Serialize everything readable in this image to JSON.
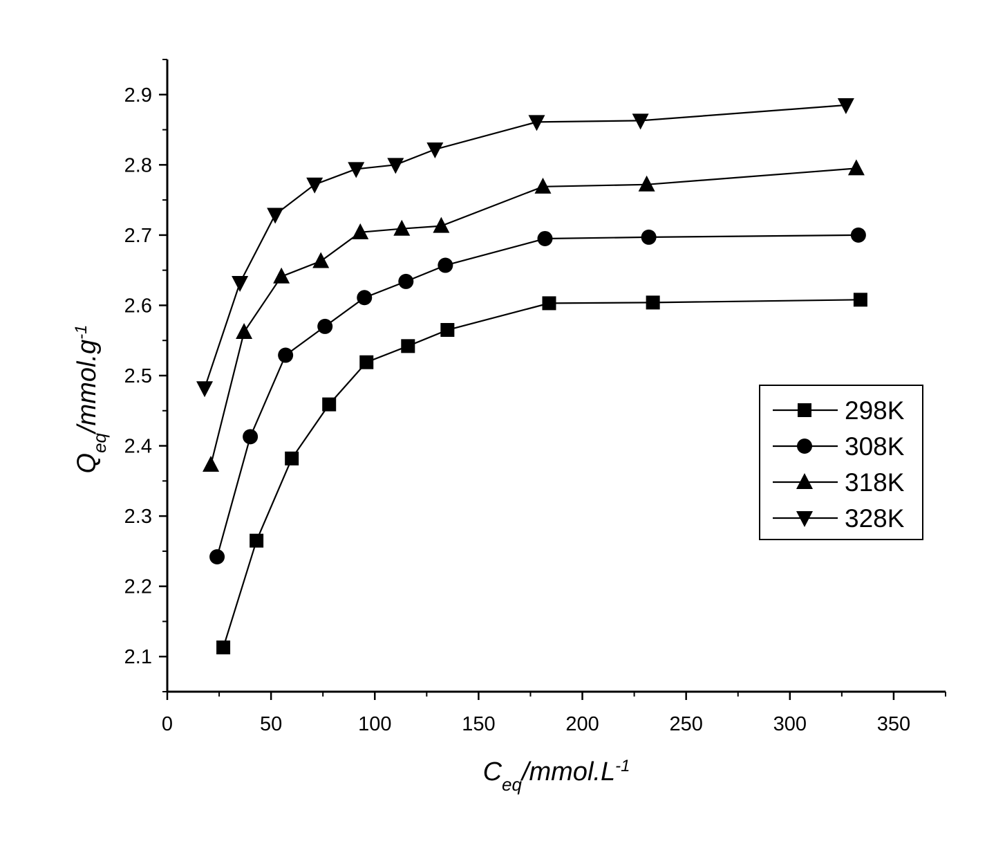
{
  "chart_data": {
    "type": "line",
    "xaxis": {
      "label_main": "C",
      "label_sub": "eq",
      "label_rest": "/mmol.L",
      "label_sup": "-1",
      "range": [
        0,
        375
      ],
      "ticks": [
        0,
        50,
        100,
        150,
        200,
        250,
        300,
        350
      ],
      "tick_labels": [
        "0",
        "50",
        "100",
        "150",
        "200",
        "250",
        "300",
        "350"
      ]
    },
    "yaxis": {
      "label_main": "Q",
      "label_sub": "eq",
      "label_rest": "/mmol.g",
      "label_sup": "-1",
      "range": [
        2.05,
        2.95
      ],
      "ticks": [
        2.1,
        2.2,
        2.3,
        2.4,
        2.5,
        2.6,
        2.7,
        2.8,
        2.9
      ],
      "tick_labels": [
        "2.1",
        "2.2",
        "2.3",
        "2.4",
        "2.5",
        "2.6",
        "2.7",
        "2.8",
        "2.9"
      ]
    },
    "grid": false,
    "legend_position": "right",
    "series": [
      {
        "name": "298K",
        "marker": "square",
        "x": [
          27,
          43,
          60,
          78,
          96,
          116,
          135,
          184,
          234,
          334
        ],
        "y": [
          2.113,
          2.265,
          2.382,
          2.459,
          2.519,
          2.542,
          2.565,
          2.603,
          2.604,
          2.608
        ]
      },
      {
        "name": "308K",
        "marker": "circle",
        "x": [
          24,
          40,
          57,
          76,
          95,
          115,
          134,
          182,
          232,
          333
        ],
        "y": [
          2.242,
          2.413,
          2.529,
          2.57,
          2.611,
          2.634,
          2.657,
          2.695,
          2.697,
          2.7
        ]
      },
      {
        "name": "318K",
        "marker": "triangle-up",
        "x": [
          21,
          37,
          55,
          74,
          93,
          113,
          132,
          181,
          231,
          332
        ],
        "y": [
          2.373,
          2.562,
          2.641,
          2.663,
          2.704,
          2.709,
          2.713,
          2.769,
          2.772,
          2.795
        ]
      },
      {
        "name": "328K",
        "marker": "triangle-down",
        "x": [
          18,
          35,
          52,
          71,
          91,
          110,
          129,
          178,
          228,
          327
        ],
        "y": [
          2.482,
          2.632,
          2.729,
          2.772,
          2.794,
          2.8,
          2.822,
          2.861,
          2.863,
          2.885
        ]
      }
    ]
  }
}
